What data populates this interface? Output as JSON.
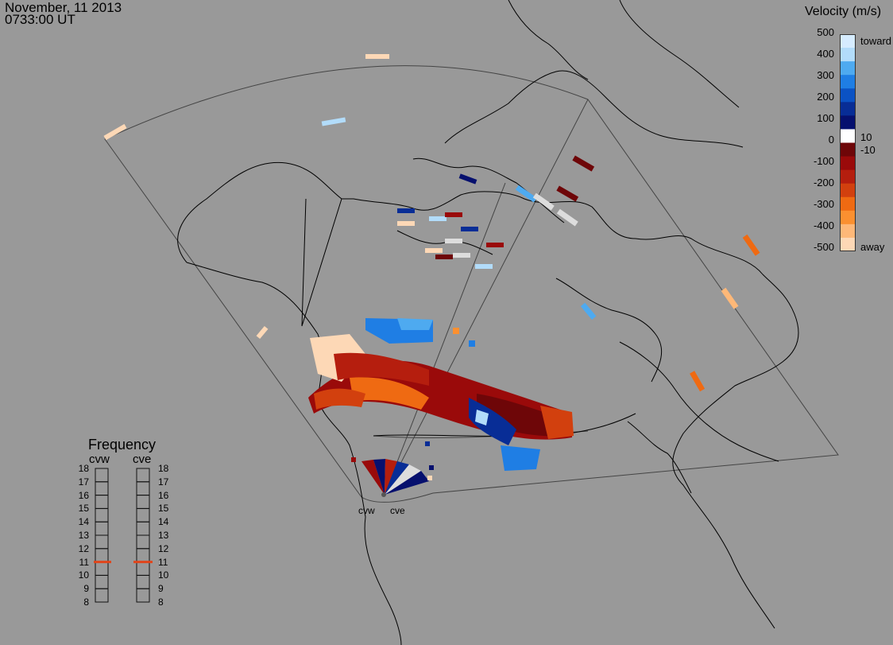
{
  "header": {
    "date": "November, 11 2013",
    "time": "0733:00 UT"
  },
  "colorbar": {
    "title": "Velocity (m/s)",
    "ticks": [
      "500",
      "400",
      "300",
      "200",
      "100",
      "0",
      "-100",
      "-200",
      "-300",
      "-400",
      "-500"
    ],
    "inner_ticks": [
      "10",
      "-10"
    ],
    "toward_label": "toward",
    "away_label": "away",
    "colors": [
      "#d6ecff",
      "#b2dcfa",
      "#4eaaf0",
      "#1f7ee4",
      "#0b52c4",
      "#082d96",
      "#06106e",
      "#ffffff",
      "#6e0608",
      "#9a0a0a",
      "#b51e0e",
      "#d2400e",
      "#ef6a12",
      "#fb9030",
      "#feb878",
      "#fdd8b6"
    ]
  },
  "frequency": {
    "title": "Frequency",
    "radars": [
      {
        "name": "cvw",
        "freq_mhz": 11
      },
      {
        "name": "cve",
        "freq_mhz": 11
      }
    ],
    "ticks": [
      "18",
      "17",
      "16",
      "15",
      "14",
      "13",
      "12",
      "11",
      "10",
      "9",
      "8"
    ],
    "marker_color": "#e0461c"
  },
  "radar_labels": [
    "cvw",
    "cve"
  ]
}
